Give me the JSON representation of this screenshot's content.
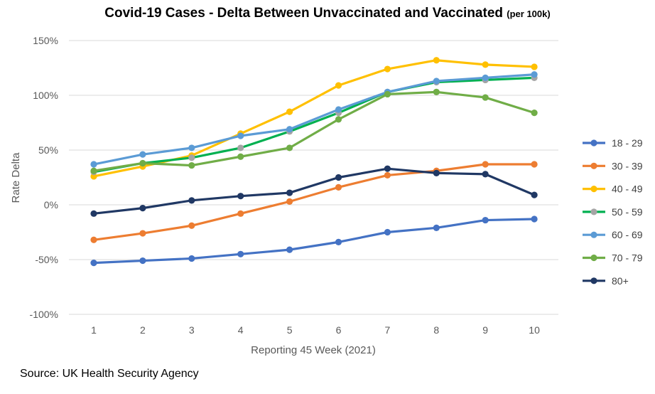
{
  "title": "Covid-19 Cases - Delta Between Unvaccinated and Vaccinated",
  "title_suffix": "(per 100k)",
  "source": "Source: UK Health Security Agency",
  "chart_data": {
    "type": "line",
    "xlabel": "Reporting 45 Week (2021)",
    "ylabel": "Rate Delta",
    "x": [
      1,
      2,
      3,
      4,
      5,
      6,
      7,
      8,
      9,
      10
    ],
    "ylim": [
      -100,
      150
    ],
    "yticks": [
      -100,
      -50,
      0,
      50,
      100,
      150
    ],
    "ytick_labels": [
      "-100%",
      "-50%",
      "0%",
      "50%",
      "100%",
      "150%"
    ],
    "grid": true,
    "legend": "right",
    "series": [
      {
        "name": "18 - 29",
        "color": "#4472C4",
        "values": [
          -53,
          -51,
          -49,
          -45,
          -41,
          -34,
          -25,
          -21,
          -14,
          -13
        ]
      },
      {
        "name": "30 - 39",
        "color": "#ED7D31",
        "values": [
          -32,
          -26,
          -19,
          -8,
          3,
          16,
          27,
          31,
          37,
          37
        ]
      },
      {
        "name": "40 - 49",
        "color": "#FFC000",
        "values": [
          26,
          35,
          45,
          65,
          85,
          109,
          124,
          132,
          128,
          126
        ]
      },
      {
        "name": "50 - 59",
        "color": "#00B050",
        "values": [
          30,
          38,
          43,
          52,
          67,
          84,
          103,
          112,
          114,
          116
        ]
      },
      {
        "name": "60 - 69",
        "color": "#5B9BD5",
        "values": [
          37,
          46,
          52,
          63,
          69,
          87,
          103,
          113,
          116,
          119
        ]
      },
      {
        "name": "70 - 79",
        "color": "#70AD47",
        "values": [
          31,
          38,
          36,
          44,
          52,
          78,
          101,
          103,
          98,
          84
        ]
      },
      {
        "name": "80+",
        "color": "#203864",
        "values": [
          -8,
          -3,
          4,
          8,
          11,
          25,
          33,
          29,
          28,
          9
        ]
      }
    ],
    "marker_overrides": [
      {
        "series": "50 - 59",
        "color": "#A5A5A5"
      }
    ]
  }
}
